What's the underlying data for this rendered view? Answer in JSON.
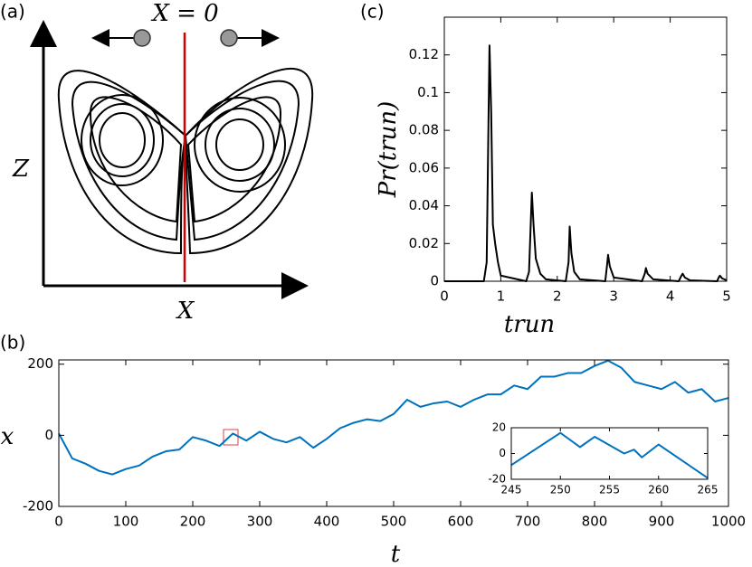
{
  "panel_a": {
    "label": "(a)",
    "annotation": "X = 0",
    "xlabel": "X",
    "ylabel": "Z"
  },
  "chart_data": [
    {
      "type": "line",
      "label": "(c)",
      "xlabel": "t_run",
      "ylabel": "Pr(t_run)",
      "xlim": [
        0,
        5
      ],
      "ylim": [
        0,
        0.14
      ],
      "xticks": [
        0,
        1,
        2,
        3,
        4,
        5
      ],
      "yticks": [
        0,
        0.02,
        0.04,
        0.06,
        0.08,
        0.1,
        0.12
      ],
      "series": [
        {
          "color": "#000000",
          "x": [
            0,
            0.7,
            0.75,
            0.78,
            0.8,
            0.83,
            0.86,
            0.9,
            0.95,
            1.0,
            1.45,
            1.5,
            1.53,
            1.55,
            1.58,
            1.62,
            1.7,
            1.8,
            2.15,
            2.2,
            2.22,
            2.25,
            2.3,
            2.4,
            2.85,
            2.88,
            2.9,
            2.93,
            3.0,
            3.5,
            3.55,
            3.57,
            3.6,
            3.7,
            4.15,
            4.2,
            4.22,
            4.26,
            4.35,
            4.83,
            4.86,
            4.88,
            4.92,
            5.0
          ],
          "values": [
            0,
            0,
            0.01,
            0.08,
            0.125,
            0.09,
            0.03,
            0.02,
            0.01,
            0.003,
            0,
            0.005,
            0.03,
            0.047,
            0.03,
            0.012,
            0.004,
            0.001,
            0,
            0.01,
            0.029,
            0.015,
            0.005,
            0.001,
            0,
            0.008,
            0.014,
            0.008,
            0.002,
            0,
            0.004,
            0.007,
            0.004,
            0.001,
            0,
            0.003,
            0.004,
            0.002,
            0.0005,
            0,
            0.002,
            0.003,
            0.0015,
            0.0005
          ]
        }
      ]
    },
    {
      "type": "line",
      "label": "(b)",
      "xlabel": "t",
      "ylabel": "x",
      "xlim": [
        0,
        1000
      ],
      "ylim": [
        -200,
        212
      ],
      "xticks": [
        0,
        100,
        200,
        300,
        400,
        500,
        600,
        700,
        800,
        900,
        1000
      ],
      "yticks": [
        -200,
        0,
        200
      ],
      "series": [
        {
          "color": "#0072bd",
          "x": [
            0,
            20,
            40,
            60,
            80,
            100,
            120,
            140,
            160,
            180,
            200,
            220,
            240,
            260,
            280,
            300,
            320,
            340,
            360,
            380,
            400,
            420,
            440,
            460,
            480,
            500,
            520,
            540,
            560,
            580,
            600,
            620,
            640,
            660,
            680,
            700,
            720,
            740,
            760,
            780,
            800,
            820,
            840,
            860,
            880,
            900,
            920,
            940,
            960,
            980,
            1000
          ],
          "values": [
            5,
            -65,
            -80,
            -100,
            -110,
            -95,
            -85,
            -60,
            -45,
            -40,
            -5,
            -15,
            -30,
            5,
            -15,
            10,
            -10,
            -20,
            -5,
            -35,
            -10,
            20,
            35,
            45,
            40,
            60,
            100,
            80,
            90,
            95,
            80,
            100,
            115,
            115,
            140,
            130,
            165,
            165,
            175,
            175,
            195,
            210,
            190,
            150,
            140,
            130,
            150,
            120,
            130,
            95,
            105
          ]
        }
      ]
    },
    {
      "type": "line",
      "xlim": [
        245,
        265
      ],
      "ylim": [
        -20,
        20
      ],
      "xticks": [
        245,
        250,
        255,
        260,
        265
      ],
      "yticks": [
        -20,
        0,
        20
      ],
      "series": [
        {
          "color": "#0072bd",
          "x": [
            245,
            250,
            252,
            253.5,
            256.5,
            257.5,
            258.3,
            260,
            265
          ],
          "values": [
            -9,
            16,
            5,
            13,
            0,
            3,
            -3,
            7,
            -19
          ]
        }
      ]
    }
  ]
}
